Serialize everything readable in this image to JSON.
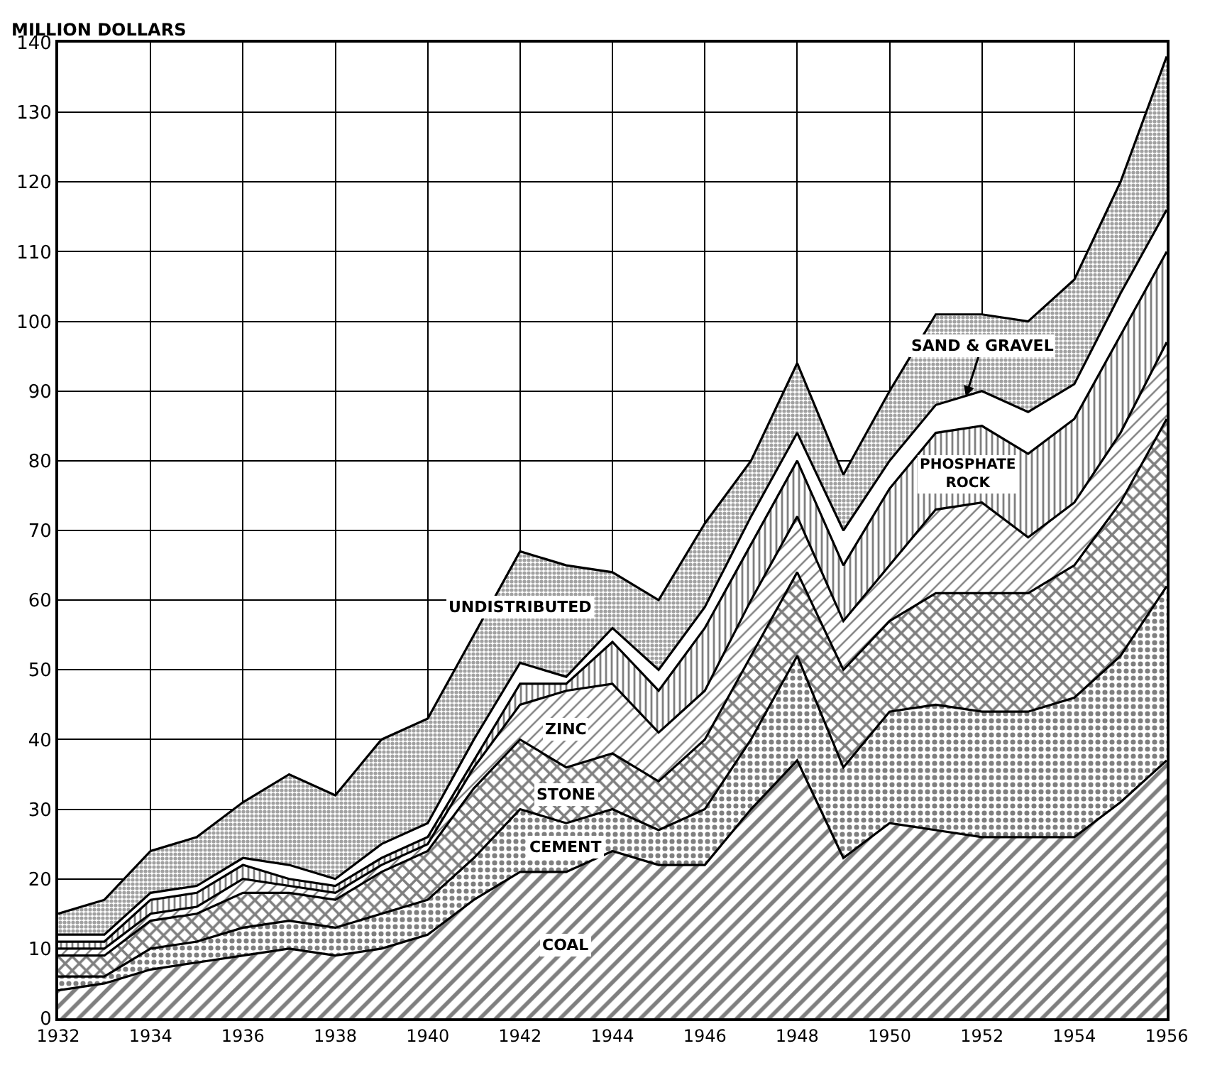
{
  "chart_data": {
    "type": "area",
    "stacked": true,
    "ylabel": "MILLION DOLLARS",
    "x": [
      1932,
      1933,
      1934,
      1935,
      1936,
      1937,
      1938,
      1939,
      1940,
      1941,
      1942,
      1943,
      1944,
      1945,
      1946,
      1947,
      1948,
      1949,
      1950,
      1951,
      1952,
      1953,
      1954,
      1955,
      1956
    ],
    "series": [
      {
        "name": "COAL",
        "color": "#000000",
        "values": [
          4,
          5,
          7,
          8,
          9,
          10,
          9,
          10,
          12,
          17,
          21,
          21,
          24,
          22,
          22,
          30,
          37,
          23,
          28,
          27,
          26,
          26,
          26,
          31,
          37
        ]
      },
      {
        "name": "CEMENT",
        "color": "#000000",
        "values": [
          2,
          1,
          3,
          3,
          4,
          4,
          4,
          5,
          5,
          6,
          9,
          7,
          6,
          5,
          8,
          10,
          15,
          13,
          16,
          18,
          18,
          18,
          20,
          21,
          25
        ]
      },
      {
        "name": "STONE",
        "color": "#000000",
        "values": [
          3,
          3,
          4,
          4,
          5,
          4,
          4,
          6,
          7,
          10,
          10,
          8,
          8,
          7,
          10,
          12,
          12,
          14,
          13,
          16,
          17,
          17,
          19,
          22,
          24
        ]
      },
      {
        "name": "ZINC",
        "color": "#000000",
        "values": [
          1,
          1,
          1,
          1,
          2,
          1,
          1,
          1,
          1,
          3,
          5,
          11,
          10,
          7,
          7,
          8,
          8,
          7,
          8,
          12,
          13,
          8,
          9,
          10,
          11
        ]
      },
      {
        "name": "PHOSPHATE\nROCK",
        "color": "#000000",
        "values": [
          1,
          1,
          2,
          2,
          2,
          1,
          1,
          1,
          1,
          1,
          3,
          1,
          6,
          6,
          9,
          8,
          8,
          8,
          11,
          11,
          11,
          12,
          12,
          14,
          13
        ]
      },
      {
        "name": "SAND & GRAVEL",
        "color": "#ffffff",
        "values": [
          1,
          1,
          1,
          1,
          1,
          2,
          1,
          2,
          2,
          3,
          3,
          1,
          2,
          3,
          3,
          4,
          4,
          5,
          4,
          4,
          5,
          6,
          5,
          6,
          6
        ]
      },
      {
        "name": "UNDISTRIBUTED",
        "color": "#444444",
        "values": [
          3,
          5,
          6,
          7,
          8,
          13,
          12,
          15,
          15,
          15,
          16,
          16,
          8,
          10,
          12,
          8,
          10,
          8,
          10,
          13,
          11,
          13,
          15,
          16,
          22
        ]
      }
    ],
    "xlim": [
      1932,
      1956
    ],
    "xticks": [
      1932,
      1934,
      1936,
      1938,
      1940,
      1942,
      1944,
      1946,
      1948,
      1950,
      1952,
      1954,
      1956
    ],
    "ylim": [
      0,
      140
    ],
    "yticks": [
      0,
      10,
      20,
      30,
      40,
      50,
      60,
      70,
      80,
      90,
      100,
      110,
      120,
      130,
      140
    ],
    "grid": true,
    "legend": false
  }
}
